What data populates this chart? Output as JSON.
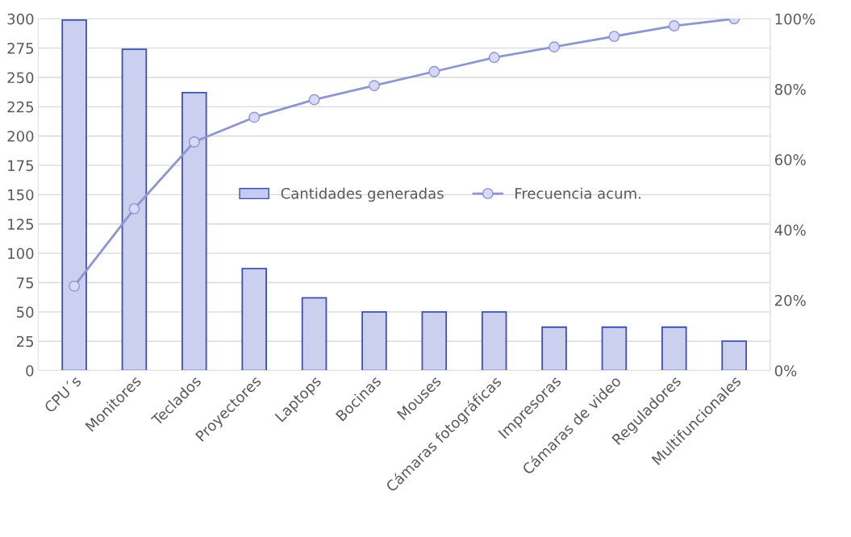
{
  "chart_data": {
    "type": "bar",
    "categories": [
      "CPU´s",
      "Monitores",
      "Teclados",
      "Proyectores",
      "Laptops",
      "Bocinas",
      "Mouses",
      "Cámaras fotográficas",
      "Impresoras",
      "Cámaras de video",
      "Reguladores",
      "Multifuncionales"
    ],
    "series": [
      {
        "name": "Cantidades generadas",
        "color": "#c5cbf5",
        "values": [
          299,
          274,
          237,
          87,
          62,
          50,
          50,
          50,
          37,
          37,
          37,
          25
        ]
      },
      {
        "name": "Frecuencia acum.",
        "type": "line",
        "axis": "y2",
        "color": "#8e95d0",
        "marker": "circle",
        "values": [
          24,
          46,
          65,
          72,
          77,
          81,
          85,
          89,
          92,
          95,
          98,
          100
        ]
      }
    ],
    "ylim": [
      0,
      300
    ],
    "yticks": [
      0,
      25,
      50,
      75,
      100,
      125,
      150,
      175,
      200,
      225,
      250,
      275,
      300
    ],
    "y2lim": [
      0,
      100
    ],
    "y2ticks": [
      {
        "value": 0,
        "label": "0%"
      },
      {
        "value": 20,
        "label": "20%"
      },
      {
        "value": 40,
        "label": "40%"
      },
      {
        "value": 60,
        "label": "60%"
      },
      {
        "value": 80,
        "label": "80%"
      },
      {
        "value": 100,
        "label": "100%"
      }
    ],
    "grid": "y",
    "legend": "center"
  }
}
